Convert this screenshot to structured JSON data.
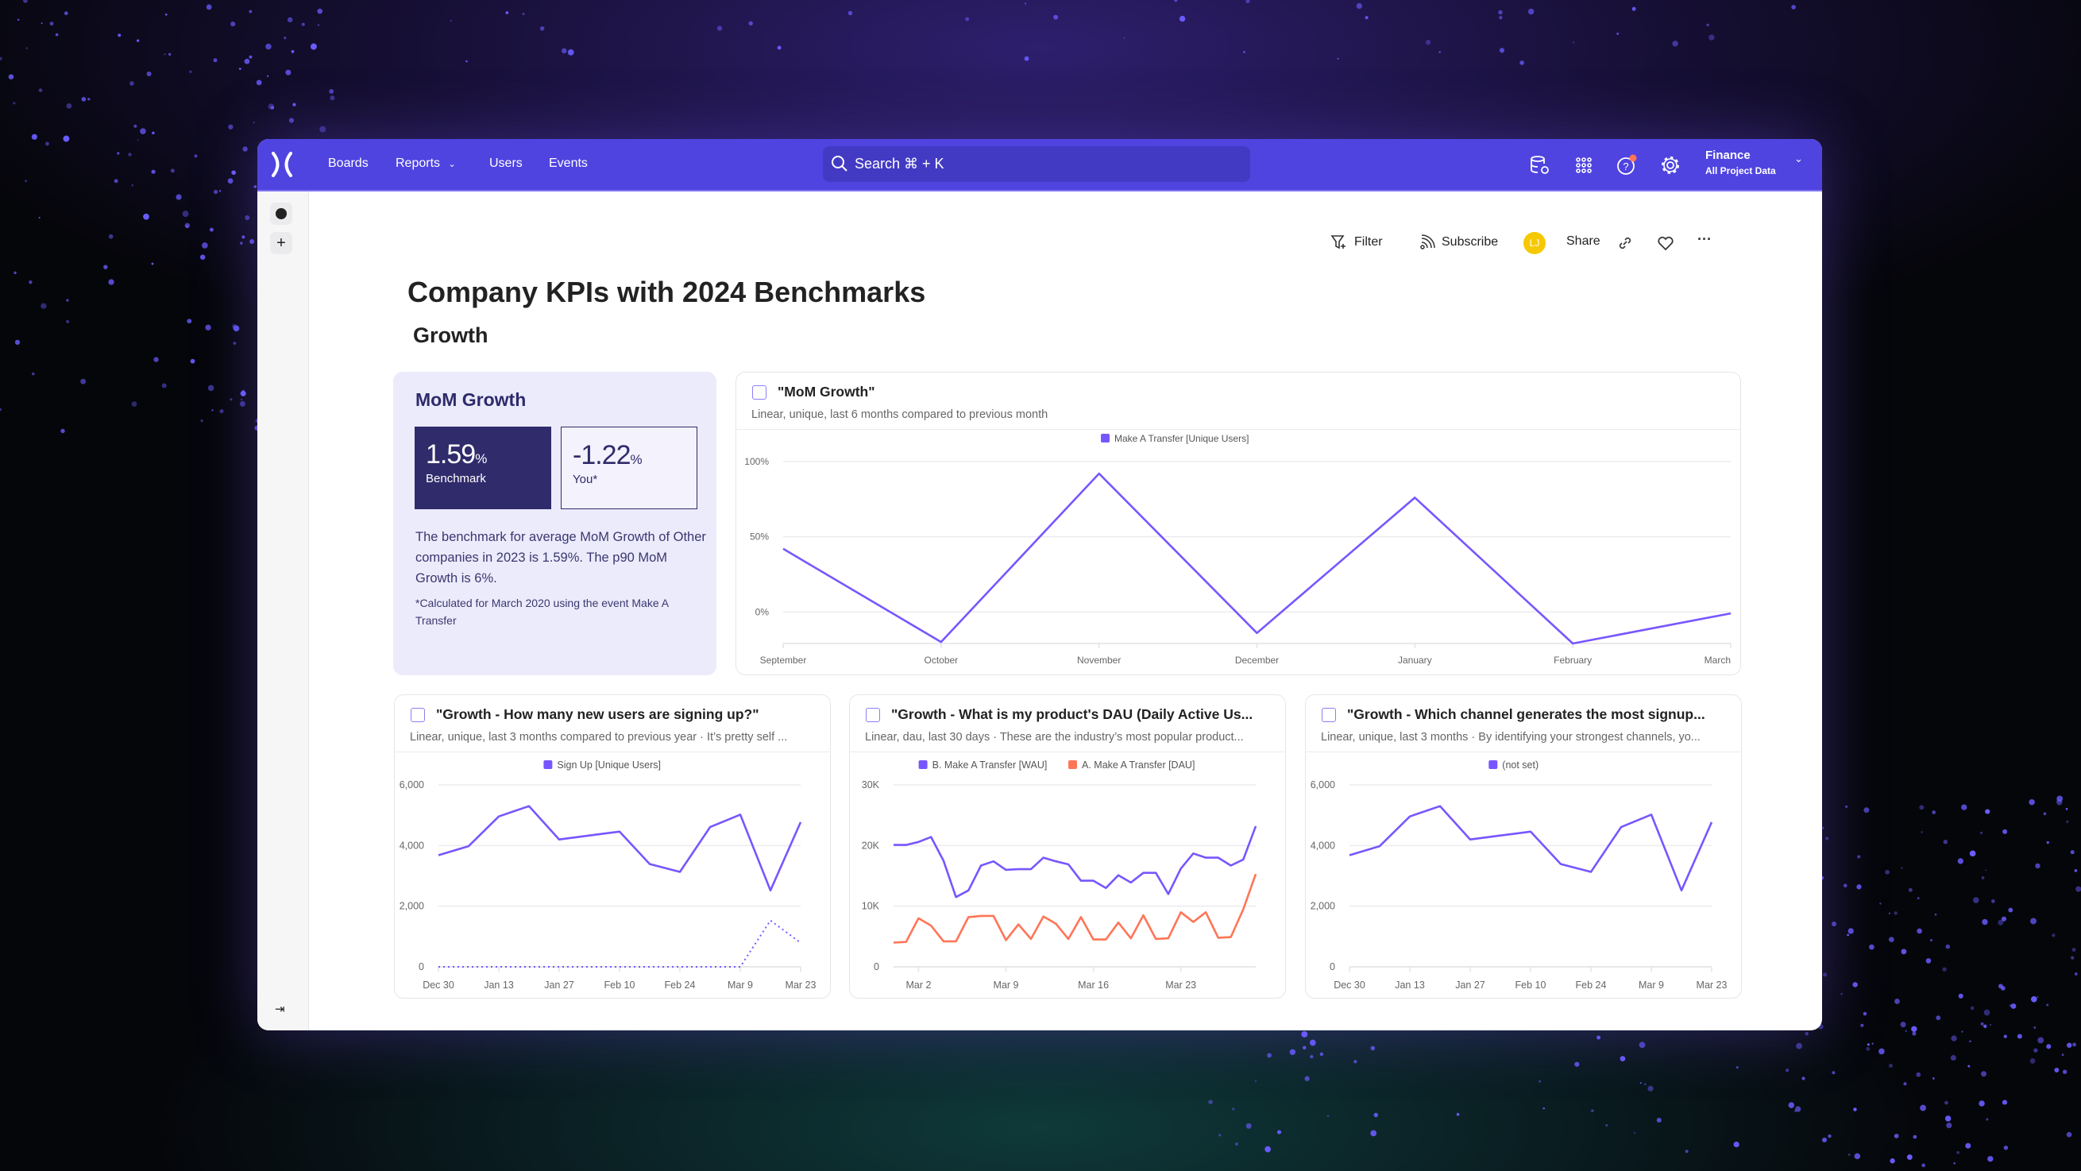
{
  "nav": {
    "items": [
      "Boards",
      "Reports",
      "Users",
      "Events"
    ],
    "search_placeholder": "Search ⌘ + K",
    "project": "Finance",
    "project_sub": "All Project Data",
    "icons": [
      "data-settings-icon",
      "apps-grid-icon",
      "help-icon",
      "gear-icon"
    ]
  },
  "toolbar": {
    "filter": "Filter",
    "subscribe": "Subscribe",
    "avatar": "LJ",
    "share": "Share"
  },
  "page": {
    "title": "Company KPIs with 2024 Benchmarks",
    "section": "Growth"
  },
  "mom_card": {
    "title": "MoM Growth",
    "benchmark_value": "1.59",
    "benchmark_unit": "%",
    "benchmark_label": "Benchmark",
    "you_value": "-1.22",
    "you_unit": "%",
    "you_label": "You*",
    "description": "The benchmark for average MoM Growth of Other companies in 2023 is 1.59%. The p90 MoM Growth is 6%.",
    "footnote": "*Calculated for March 2020 using the event Make A Transfer"
  },
  "colors": {
    "nav": "#4f44e0",
    "primary_series": "#7856ff",
    "secondary_series": "#ff7557",
    "benchmark": "#302b6b"
  },
  "cards": [
    {
      "title": "\"MoM Growth\"",
      "subtitle": "Linear, unique, last 6 months compared to previous month"
    },
    {
      "title": "\"Growth - How many new users are signing up?\"",
      "subtitle": "Linear, unique, last 3 months compared to previous year · It’s pretty self ..."
    },
    {
      "title": "\"Growth - What is my product's DAU (Daily Active Us...",
      "subtitle": "Linear, dau, last 30 days · These are the industry’s most popular product..."
    },
    {
      "title": "\"Growth - Which channel generates the most signup...",
      "subtitle": "Linear, unique, last 3 months · By identifying your strongest channels, yo..."
    }
  ],
  "chart_data": [
    {
      "type": "line",
      "x": [
        "September",
        "October",
        "November",
        "December",
        "January",
        "February",
        "March"
      ],
      "x_ticks": [
        "September",
        "October",
        "November",
        "December",
        "January",
        "February",
        "March"
      ],
      "ylim": [
        -21,
        100
      ],
      "y_ticks": [
        0,
        50,
        100
      ],
      "y_tick_labels": [
        "0%",
        "50%",
        "100%"
      ],
      "grid": true,
      "legend": "top-center",
      "series": [
        {
          "name": "Make A Transfer [Unique Users]",
          "color": "#7856ff",
          "values": [
            42,
            -20,
            92,
            -14,
            76,
            -21,
            -1
          ]
        }
      ]
    },
    {
      "type": "line",
      "x": [
        "Dec 30",
        "Jan 6",
        "Jan 13",
        "Jan 20",
        "Jan 27",
        "Feb 3",
        "Feb 10",
        "Feb 17",
        "Feb 24",
        "Mar 2",
        "Mar 9",
        "Mar 16",
        "Mar 23"
      ],
      "x_ticks": [
        "Dec 30",
        "Jan 13",
        "Jan 27",
        "Feb 10",
        "Feb 24",
        "Mar 9",
        "Mar 23"
      ],
      "ylim": [
        0,
        6000
      ],
      "y_ticks": [
        0,
        2000,
        4000,
        6000
      ],
      "y_tick_labels": [
        "0",
        "2,000",
        "4,000",
        "6,000"
      ],
      "grid": true,
      "legend": "top-center",
      "series": [
        {
          "name": "Sign Up [Unique Users]",
          "color": "#7856ff",
          "values": [
            3680,
            3980,
            4960,
            5300,
            4200,
            4330,
            4460,
            3390,
            3130,
            4610,
            5020,
            2520,
            4770
          ]
        },
        {
          "color": "#7856ff",
          "dashed": true,
          "values": [
            0,
            0,
            0,
            0,
            0,
            0,
            0,
            0,
            0,
            0,
            0,
            1530,
            790
          ]
        }
      ]
    },
    {
      "type": "line",
      "x": [
        "Feb 28",
        "Mar 1",
        "Mar 2",
        "Mar 3",
        "Mar 4",
        "Mar 5",
        "Mar 6",
        "Mar 7",
        "Mar 8",
        "Mar 9",
        "Mar 10",
        "Mar 11",
        "Mar 12",
        "Mar 13",
        "Mar 14",
        "Mar 15",
        "Mar 16",
        "Mar 17",
        "Mar 18",
        "Mar 19",
        "Mar 20",
        "Mar 21",
        "Mar 22",
        "Mar 23",
        "Mar 24",
        "Mar 25",
        "Mar 26",
        "Mar 27",
        "Mar 28",
        "Mar 29"
      ],
      "x_ticks": [
        "Mar 2",
        "Mar 9",
        "Mar 16",
        "Mar 23"
      ],
      "ylim": [
        0,
        30000
      ],
      "y_ticks": [
        0,
        10000,
        20000,
        30000
      ],
      "y_tick_labels": [
        "0",
        "10K",
        "20K",
        "30K"
      ],
      "grid": true,
      "legend": "top-center",
      "series": [
        {
          "name": "B. Make A Transfer [WAU]",
          "color": "#7856ff",
          "values": [
            20100,
            20100,
            20600,
            21400,
            17500,
            11500,
            12600,
            16700,
            17400,
            16000,
            16100,
            16100,
            18000,
            17400,
            16900,
            14200,
            14200,
            13000,
            15100,
            13900,
            15500,
            15500,
            12000,
            16200,
            18700,
            18000,
            18000,
            16700,
            17700,
            23200
          ]
        },
        {
          "name": "A. Make A Transfer [DAU]",
          "color": "#ff7557",
          "values": [
            4000,
            4100,
            8000,
            6800,
            4200,
            4200,
            8200,
            8400,
            8400,
            4400,
            7000,
            4600,
            8300,
            7100,
            4600,
            8200,
            4500,
            4500,
            7300,
            4700,
            8500,
            4600,
            4700,
            9000,
            7400,
            9000,
            4800,
            4900,
            9500,
            15300
          ]
        }
      ]
    },
    {
      "type": "line",
      "x": [
        "Dec 30",
        "Jan 6",
        "Jan 13",
        "Jan 20",
        "Jan 27",
        "Feb 3",
        "Feb 10",
        "Feb 17",
        "Feb 24",
        "Mar 2",
        "Mar 9",
        "Mar 16",
        "Mar 23"
      ],
      "x_ticks": [
        "Dec 30",
        "Jan 13",
        "Jan 27",
        "Feb 10",
        "Feb 24",
        "Mar 9",
        "Mar 23"
      ],
      "ylim": [
        0,
        6000
      ],
      "y_ticks": [
        0,
        2000,
        4000,
        6000
      ],
      "y_tick_labels": [
        "0",
        "2,000",
        "4,000",
        "6,000"
      ],
      "grid": true,
      "legend": "top-center",
      "series": [
        {
          "name": "(not set)",
          "color": "#7856ff",
          "values": [
            3680,
            3980,
            4960,
            5300,
            4200,
            4330,
            4460,
            3390,
            3130,
            4610,
            5020,
            2520,
            4770
          ]
        }
      ]
    }
  ]
}
